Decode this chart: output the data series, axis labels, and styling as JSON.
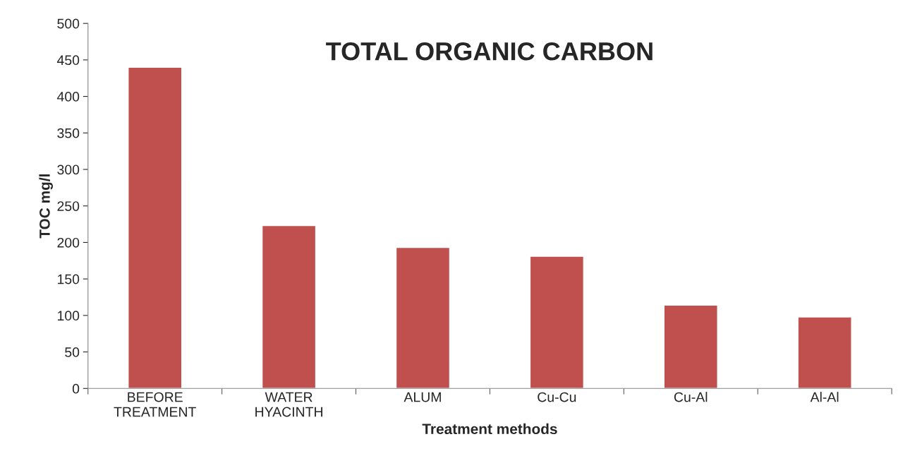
{
  "chart_data": {
    "type": "bar",
    "title": "TOTAL ORGANIC CARBON",
    "xlabel": "Treatment methods",
    "ylabel": "TOC mg/l",
    "categories": [
      "BEFORE\nTREATMENT",
      "WATER\nHYACINTH",
      "ALUM",
      "Cu-Cu",
      "Cu-Al",
      "Al-Al"
    ],
    "values": [
      440,
      223,
      193,
      181,
      114,
      98
    ],
    "color": "#c0504d",
    "ylim": [
      0,
      500
    ],
    "yticks": [
      0,
      50,
      100,
      150,
      200,
      250,
      300,
      350,
      400,
      450,
      500
    ],
    "grid": false
  }
}
